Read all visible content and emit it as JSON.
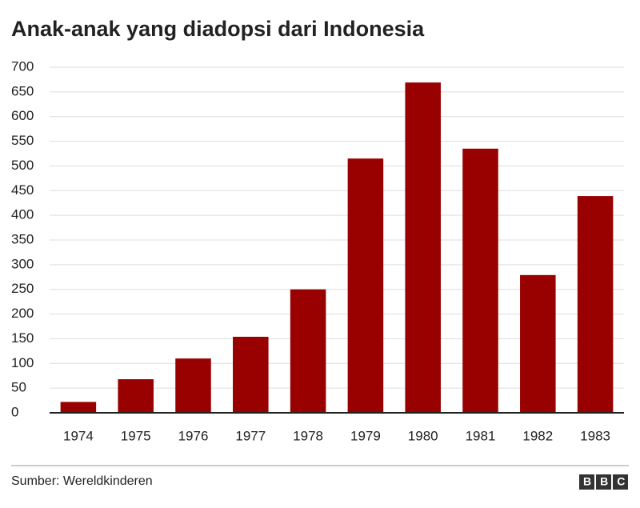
{
  "chart_data": {
    "type": "bar",
    "title": "Anak-anak yang diadopsi dari Indonesia",
    "categories": [
      "1974",
      "1975",
      "1976",
      "1977",
      "1978",
      "1979",
      "1980",
      "1981",
      "1982",
      "1983"
    ],
    "values": [
      22,
      68,
      110,
      154,
      250,
      515,
      669,
      535,
      279,
      439
    ],
    "color": "#990000",
    "ylim": [
      0,
      700
    ],
    "yticks": [
      0,
      50,
      100,
      150,
      200,
      250,
      300,
      350,
      400,
      450,
      500,
      550,
      600,
      650,
      700
    ],
    "grid": true,
    "source": "Sumber: Wereldkinderen",
    "logo": "BBC"
  }
}
